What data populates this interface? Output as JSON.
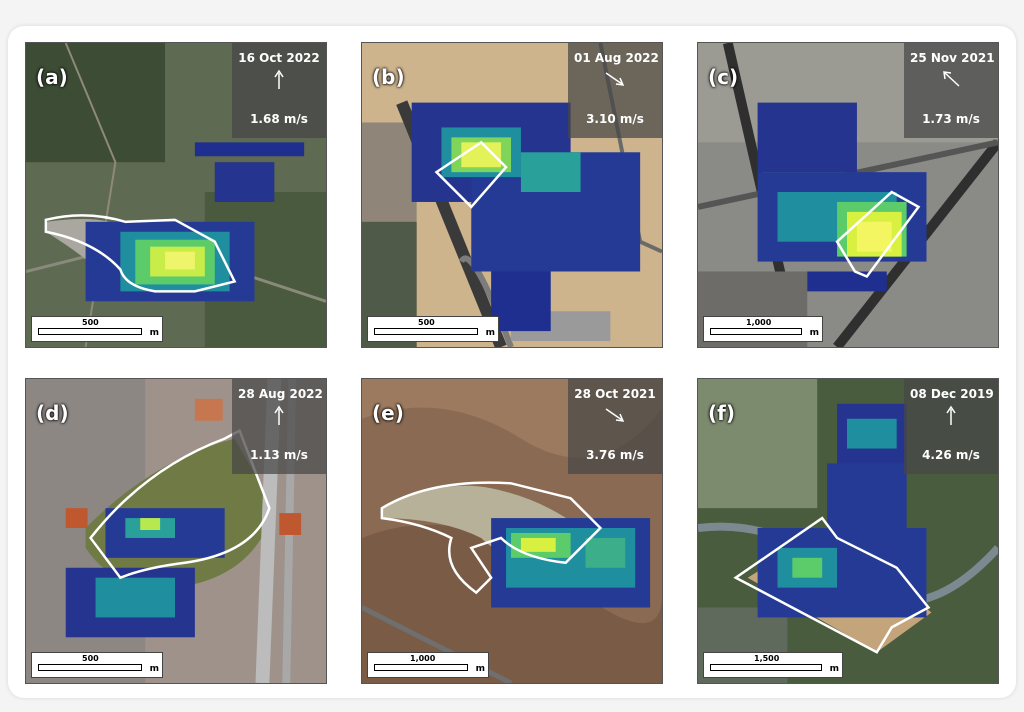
{
  "panels": [
    {
      "label": "(a)",
      "date": "16 Oct 2022",
      "wind_speed": "1.68 m/s",
      "scale_value": "500",
      "scale_unit": "m",
      "wind_icon": "arrow-up-icon"
    },
    {
      "label": "(b)",
      "date": "01 Aug 2022",
      "wind_speed": "3.10 m/s",
      "scale_value": "500",
      "scale_unit": "m",
      "wind_icon": "arrow-down-right-icon"
    },
    {
      "label": "(c)",
      "date": "25 Nov 2021",
      "wind_speed": "1.73 m/s",
      "scale_value": "1,000",
      "scale_unit": "m",
      "wind_icon": "arrow-up-left-icon"
    },
    {
      "label": "(d)",
      "date": "28 Aug 2022",
      "wind_speed": "1.13 m/s",
      "scale_value": "500",
      "scale_unit": "m",
      "wind_icon": "arrow-up-icon"
    },
    {
      "label": "(e)",
      "date": "28 Oct 2021",
      "wind_speed": "3.76 m/s",
      "scale_value": "1,000",
      "scale_unit": "m",
      "wind_icon": "arrow-down-right-icon"
    },
    {
      "label": "(f)",
      "date": "08 Dec 2019",
      "wind_speed": "4.26 m/s",
      "scale_value": "1,500",
      "scale_unit": "m",
      "wind_icon": "arrow-up-icon"
    }
  ],
  "colors": {
    "plume_low": "#1f2f8f",
    "plume_mid": "#1f8fa0",
    "plume_high": "#d8f040",
    "outline": "#ffffff"
  }
}
